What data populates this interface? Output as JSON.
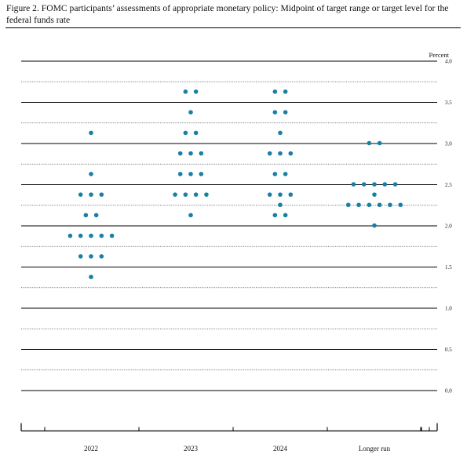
{
  "title": "Figure 2.  FOMC participants’ assessments of appropriate monetary policy:  Midpoint of target range or target level for the federal funds rate",
  "chart_data": {
    "type": "scatter",
    "title": "Figure 2.  FOMC participants’ assessments of appropriate monetary policy:  Midpoint of target range or target level for the federal funds rate",
    "unit_label": "Percent",
    "ylim": [
      0,
      4
    ],
    "y_ticks": [
      "0.0",
      "0.5",
      "1.0",
      "1.5",
      "2.0",
      "2.5",
      "3.0",
      "3.5",
      "4.0"
    ],
    "categories": [
      "2022",
      "2023",
      "2024",
      "Longer run"
    ],
    "dot_color": "#1a7fa6",
    "dots": [
      {
        "category": "2022",
        "values": [
          {
            "y": 3.125,
            "count": 1
          },
          {
            "y": 2.625,
            "count": 1
          },
          {
            "y": 2.375,
            "count": 3
          },
          {
            "y": 2.125,
            "count": 2
          },
          {
            "y": 1.875,
            "count": 5
          },
          {
            "y": 1.625,
            "count": 3
          },
          {
            "y": 1.375,
            "count": 1
          }
        ]
      },
      {
        "category": "2023",
        "values": [
          {
            "y": 3.625,
            "count": 2
          },
          {
            "y": 3.375,
            "count": 1
          },
          {
            "y": 3.125,
            "count": 2
          },
          {
            "y": 2.875,
            "count": 3
          },
          {
            "y": 2.625,
            "count": 3
          },
          {
            "y": 2.375,
            "count": 4
          },
          {
            "y": 2.125,
            "count": 1
          }
        ]
      },
      {
        "category": "2024",
        "values": [
          {
            "y": 3.625,
            "count": 2
          },
          {
            "y": 3.375,
            "count": 2
          },
          {
            "y": 3.125,
            "count": 1
          },
          {
            "y": 2.875,
            "count": 3
          },
          {
            "y": 2.625,
            "count": 2
          },
          {
            "y": 2.375,
            "count": 3
          },
          {
            "y": 2.25,
            "count": 1
          },
          {
            "y": 2.125,
            "count": 2
          }
        ]
      },
      {
        "category": "Longer run",
        "values": [
          {
            "y": 3.0,
            "count": 2
          },
          {
            "y": 2.5,
            "count": 5
          },
          {
            "y": 2.375,
            "count": 1
          },
          {
            "y": 2.25,
            "count": 6
          },
          {
            "y": 2.0,
            "count": 1
          }
        ]
      }
    ]
  }
}
